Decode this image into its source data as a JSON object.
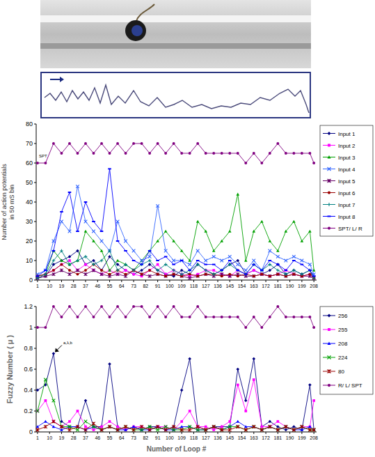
{
  "chart_data": [
    {
      "type": "line",
      "y_label": "Number of action potentials in 50 mS bin",
      "annotation": "SPT",
      "x": [
        1,
        7,
        13,
        19,
        25,
        31,
        37,
        43,
        49,
        55,
        61,
        67,
        73,
        79,
        85,
        91,
        97,
        103,
        109,
        115,
        121,
        127,
        133,
        139,
        145,
        151,
        157,
        163,
        169,
        175,
        181,
        187,
        193,
        199,
        205,
        208
      ],
      "xlim": [
        0,
        210
      ],
      "xticks": [
        1,
        10,
        19,
        28,
        37,
        46,
        55,
        64,
        73,
        82,
        91,
        100,
        109,
        118,
        127,
        136,
        145,
        154,
        163,
        172,
        181,
        190,
        199,
        208
      ],
      "ylim": [
        0,
        80
      ],
      "yticks": [
        0,
        10,
        20,
        30,
        40,
        50,
        60,
        70,
        80
      ],
      "grid": false,
      "legend": "right",
      "series": [
        {
          "name": "Input 1",
          "color": "#000080",
          "marker": "diamond",
          "line_style": "solid",
          "values": [
            1,
            2,
            8,
            10,
            12,
            15,
            8,
            10,
            5,
            12,
            8,
            5,
            3,
            5,
            8,
            5,
            3,
            2,
            5,
            3,
            8,
            5,
            3,
            5,
            8,
            10,
            3,
            5,
            3,
            5,
            8,
            3,
            5,
            3,
            5,
            1
          ]
        },
        {
          "name": "Input 2",
          "color": "#ff00ff",
          "marker": "square",
          "line_style": "solid",
          "values": [
            2,
            3,
            5,
            8,
            10,
            5,
            8,
            5,
            3,
            5,
            3,
            5,
            3,
            2,
            5,
            8,
            3,
            5,
            3,
            2,
            3,
            5,
            5,
            3,
            2,
            5,
            3,
            5,
            3,
            2,
            3,
            5,
            3,
            2,
            3,
            1
          ]
        },
        {
          "name": "Input 3",
          "color": "#00a000",
          "marker": "triangle",
          "line_style": "solid",
          "values": [
            2,
            3,
            15,
            10,
            8,
            10,
            25,
            20,
            15,
            5,
            10,
            8,
            5,
            10,
            15,
            20,
            25,
            20,
            15,
            10,
            30,
            25,
            15,
            20,
            25,
            44,
            10,
            25,
            30,
            20,
            15,
            25,
            30,
            20,
            25,
            5
          ]
        },
        {
          "name": "Input 4",
          "color": "#3366ff",
          "marker": "x",
          "line_style": "solid",
          "values": [
            3,
            5,
            20,
            30,
            25,
            48,
            30,
            25,
            20,
            15,
            30,
            20,
            15,
            10,
            12,
            38,
            15,
            10,
            10,
            8,
            15,
            10,
            12,
            10,
            12,
            8,
            5,
            10,
            5,
            15,
            12,
            10,
            12,
            10,
            8,
            3
          ]
        },
        {
          "name": "Input 5",
          "color": "#660066",
          "marker": "star",
          "line_style": "solid",
          "values": [
            1,
            2,
            3,
            5,
            3,
            5,
            3,
            5,
            3,
            2,
            3,
            2,
            5,
            3,
            2,
            3,
            2,
            3,
            2,
            1,
            2,
            3,
            2,
            3,
            2,
            3,
            2,
            2,
            3,
            2,
            3,
            2,
            3,
            2,
            2,
            1
          ]
        },
        {
          "name": "Input 6",
          "color": "#990000",
          "marker": "circle",
          "line_style": "solid",
          "values": [
            2,
            3,
            5,
            8,
            5,
            3,
            5,
            8,
            5,
            3,
            5,
            3,
            5,
            3,
            5,
            3,
            2,
            3,
            2,
            3,
            2,
            3,
            3,
            2,
            3,
            2,
            3,
            2,
            3,
            2,
            3,
            2,
            3,
            2,
            3,
            1
          ]
        },
        {
          "name": "Input 7",
          "color": "#008080",
          "marker": "plus",
          "line_style": "solid",
          "values": [
            1,
            3,
            10,
            15,
            8,
            10,
            12,
            8,
            10,
            15,
            5,
            8,
            5,
            8,
            10,
            5,
            8,
            5,
            3,
            5,
            8,
            5,
            3,
            5,
            8,
            5,
            3,
            8,
            5,
            8,
            5,
            3,
            5,
            3,
            5,
            1
          ]
        },
        {
          "name": "Input 8",
          "color": "#0000ff",
          "marker": "dash",
          "line_style": "solid",
          "values": [
            2,
            5,
            15,
            35,
            45,
            25,
            40,
            30,
            25,
            57,
            20,
            15,
            10,
            8,
            15,
            10,
            12,
            8,
            10,
            5,
            10,
            8,
            8,
            5,
            10,
            5,
            3,
            8,
            5,
            10,
            8,
            5,
            10,
            8,
            5,
            2
          ]
        },
        {
          "name": "SPT/ L/ R",
          "color": "#800080",
          "marker": "circle",
          "line_style": "solid",
          "values": [
            60,
            60,
            70,
            65,
            70,
            65,
            70,
            65,
            70,
            65,
            70,
            65,
            70,
            70,
            65,
            70,
            65,
            70,
            65,
            65,
            70,
            65,
            65,
            65,
            65,
            65,
            60,
            65,
            60,
            65,
            70,
            65,
            65,
            65,
            65,
            60
          ]
        }
      ]
    },
    {
      "type": "line",
      "y_label": "Fuzzy Number ( μ )",
      "x_label": "Number of Loop #",
      "annotation": "a,λ,b",
      "x": [
        1,
        7,
        13,
        19,
        25,
        31,
        37,
        43,
        49,
        55,
        61,
        67,
        73,
        79,
        85,
        91,
        97,
        103,
        109,
        115,
        121,
        127,
        133,
        139,
        145,
        151,
        157,
        163,
        169,
        175,
        181,
        187,
        193,
        199,
        205,
        208
      ],
      "xlim": [
        0,
        210
      ],
      "xticks": [
        1,
        10,
        19,
        28,
        37,
        46,
        55,
        64,
        73,
        82,
        91,
        100,
        109,
        118,
        127,
        136,
        145,
        154,
        163,
        172,
        181,
        190,
        199,
        208
      ],
      "ylim": [
        0,
        1.2
      ],
      "yticks": [
        0,
        0.2,
        0.4,
        0.6,
        0.8,
        1,
        1.2
      ],
      "grid": false,
      "legend": "right",
      "series": [
        {
          "name": "256",
          "color": "#000080",
          "marker": "diamond",
          "line_style": "solid",
          "values": [
            0.4,
            0.45,
            0.75,
            0.1,
            0.05,
            0.05,
            0.3,
            0.05,
            0.05,
            0.65,
            0.05,
            0.02,
            0.05,
            0.02,
            0.05,
            0.05,
            0.02,
            0.05,
            0.4,
            0.7,
            0.05,
            0.02,
            0.05,
            0.05,
            0.05,
            0.6,
            0.3,
            0.7,
            0.05,
            0.1,
            0.05,
            0.02,
            0.05,
            0.02,
            0.45,
            0.02
          ]
        },
        {
          "name": "255",
          "color": "#ff00ff",
          "marker": "square",
          "line_style": "solid",
          "values": [
            0.2,
            0.3,
            0.1,
            0.05,
            0.1,
            0.2,
            0.05,
            0.02,
            0.05,
            0.1,
            0.05,
            0.02,
            0.05,
            0.05,
            0.02,
            0.05,
            0.05,
            0.02,
            0.1,
            0.2,
            0.05,
            0.05,
            0.02,
            0.05,
            0.1,
            0.45,
            0.2,
            0.5,
            0.05,
            0.05,
            0.1,
            0.05,
            0.02,
            0.05,
            0.05,
            0.3
          ]
        },
        {
          "name": "208",
          "color": "#0000ff",
          "marker": "triangle",
          "line_style": "solid",
          "values": [
            0.05,
            0.1,
            0.05,
            0.02,
            0.05,
            0.05,
            0.02,
            0.05,
            0.02,
            0.05,
            0.02,
            0.02,
            0.05,
            0.02,
            0.02,
            0.05,
            0.02,
            0.02,
            0.05,
            0.05,
            0.02,
            0.02,
            0.05,
            0.02,
            0.05,
            0.1,
            0.05,
            0.05,
            0.02,
            0.05,
            0.02,
            0.05,
            0.02,
            0.02,
            0.05,
            0.02
          ]
        },
        {
          "name": "224",
          "color": "#00a000",
          "marker": "x",
          "line_style": "solid",
          "values": [
            0.2,
            0.5,
            0.3,
            0.05,
            0.05,
            0.02,
            0.1,
            0.05,
            0.02,
            0.05,
            0.02,
            0.05,
            0.02,
            0.02,
            0.05,
            0.02,
            0.05,
            0.02,
            0.02,
            0.05,
            0.02,
            0.02,
            0.05,
            0.02,
            0.05,
            0.05,
            0.02,
            0.05,
            0.02,
            0.05,
            0.02,
            0.05,
            0.02,
            0.05,
            0.02,
            0.02
          ]
        },
        {
          "name": "80",
          "color": "#990000",
          "marker": "star",
          "line_style": "solid",
          "values": [
            0.02,
            0.05,
            0.1,
            0.05,
            0.02,
            0.05,
            0.02,
            0.08,
            0.02,
            0.05,
            0.02,
            0.05,
            0.02,
            0.05,
            0.02,
            0.05,
            0.02,
            0.05,
            0.02,
            0.02,
            0.05,
            0.02,
            0.05,
            0.02,
            0.02,
            0.05,
            0.02,
            0.05,
            0.02,
            0.05,
            0.02,
            0.05,
            0.02,
            0.05,
            0.02,
            0.02
          ]
        },
        {
          "name": "R/ L/ SPT",
          "color": "#800080",
          "marker": "circle",
          "line_style": "solid",
          "values": [
            1,
            1,
            1.2,
            1.1,
            1.2,
            1.1,
            1.2,
            1.1,
            1.2,
            1.1,
            1.2,
            1.1,
            1.2,
            1.2,
            1.1,
            1.2,
            1.1,
            1.2,
            1.1,
            1.1,
            1.2,
            1.1,
            1.1,
            1.1,
            1.1,
            1.1,
            1,
            1.1,
            1,
            1.1,
            1.2,
            1.1,
            1.1,
            1.1,
            1.1,
            1
          ]
        }
      ]
    }
  ]
}
